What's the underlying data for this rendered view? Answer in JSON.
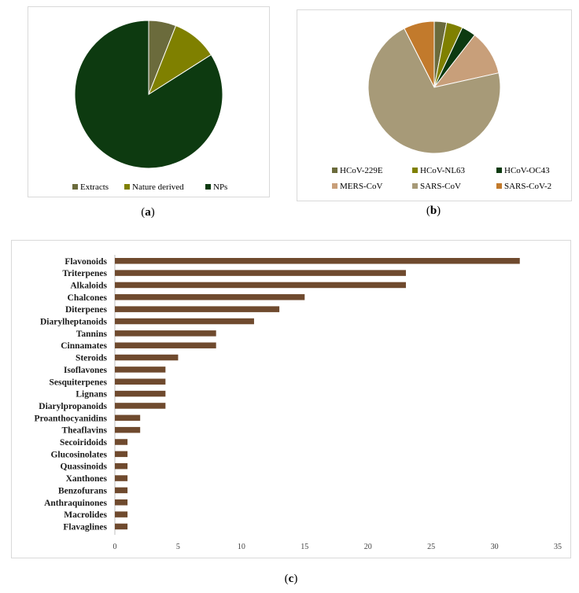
{
  "captions": {
    "a": "a",
    "b": "b",
    "c": "c"
  },
  "chart_data": [
    {
      "type": "pie",
      "panel": "a",
      "slices": [
        {
          "label": "Extracts",
          "value": 6,
          "color": "#6b6b3c"
        },
        {
          "label": "Nature derived",
          "value": 10,
          "color": "#7f8000"
        },
        {
          "label": "NPs",
          "value": 84,
          "color": "#0d3a10"
        }
      ],
      "legend": "bottom"
    },
    {
      "type": "pie",
      "panel": "b",
      "slices": [
        {
          "label": "HCoV-229E",
          "value": 3,
          "color": "#6b6b3c"
        },
        {
          "label": "HCoV-NL63",
          "value": 4,
          "color": "#7f8000"
        },
        {
          "label": "HCoV-OC43",
          "value": 3.5,
          "color": "#0d3a10"
        },
        {
          "label": "MERS-CoV",
          "value": 11,
          "color": "#c89f7a"
        },
        {
          "label": "SARS-CoV",
          "value": 71,
          "color": "#a79a78"
        },
        {
          "label": "SARS-CoV-2",
          "value": 7.5,
          "color": "#c27a2c"
        }
      ],
      "legend": "bottom"
    },
    {
      "type": "bar",
      "panel": "c",
      "orientation": "horizontal",
      "color": "#6f4a2e",
      "categories": [
        "Flavonoids",
        "Triterpenes",
        "Alkaloids",
        "Chalcones",
        "Diterpenes",
        "Diarylheptanoids",
        "Tannins",
        "Cinnamates",
        "Steroids",
        "Isoflavones",
        "Sesquiterpenes",
        "Lignans",
        "Diarylpropanoids",
        "Proanthocyanidins",
        "Theaflavins",
        "Secoiridoids",
        "Glucosinolates",
        "Quassinoids",
        "Xanthones",
        "Benzofurans",
        "Anthraquinones",
        "Macrolides",
        "Flavaglines"
      ],
      "values": [
        32,
        23,
        23,
        15,
        13,
        11,
        8,
        8,
        5,
        4,
        4,
        4,
        4,
        2,
        2,
        1,
        1,
        1,
        1,
        1,
        1,
        1,
        1
      ],
      "xlim": [
        0,
        35
      ],
      "xticks": [
        "0",
        "5",
        "10",
        "15",
        "20",
        "25",
        "30",
        "35"
      ],
      "grid": false
    }
  ]
}
